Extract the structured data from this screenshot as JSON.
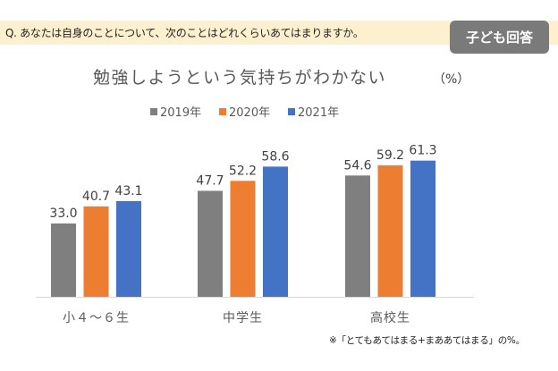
{
  "question": {
    "text": "Q. あなたは自身のことについて、次のことはどれくらいあてはまりますか。",
    "badge_label": "子ども回答"
  },
  "footnote": "※「とてもあてはまる+まああてはまる」の%。",
  "chart_data": {
    "type": "bar",
    "title": "勉強しようという気持ちがわかない",
    "unit_label": "（%）",
    "xlabel": "",
    "ylabel": "",
    "ylim": [
      0,
      100
    ],
    "grid": false,
    "legend_position": "top-center",
    "categories": [
      "小４～６生",
      "中学生",
      "高校生"
    ],
    "series": [
      {
        "name": "2019年",
        "color": "#7f7f7f",
        "values": [
          33.0,
          47.7,
          54.6
        ]
      },
      {
        "name": "2020年",
        "color": "#ed7d31",
        "values": [
          40.7,
          52.2,
          59.2
        ]
      },
      {
        "name": "2021年",
        "color": "#4472c4",
        "values": [
          43.1,
          58.6,
          61.3
        ]
      }
    ],
    "data_labels": true,
    "value_format": "0.0"
  }
}
